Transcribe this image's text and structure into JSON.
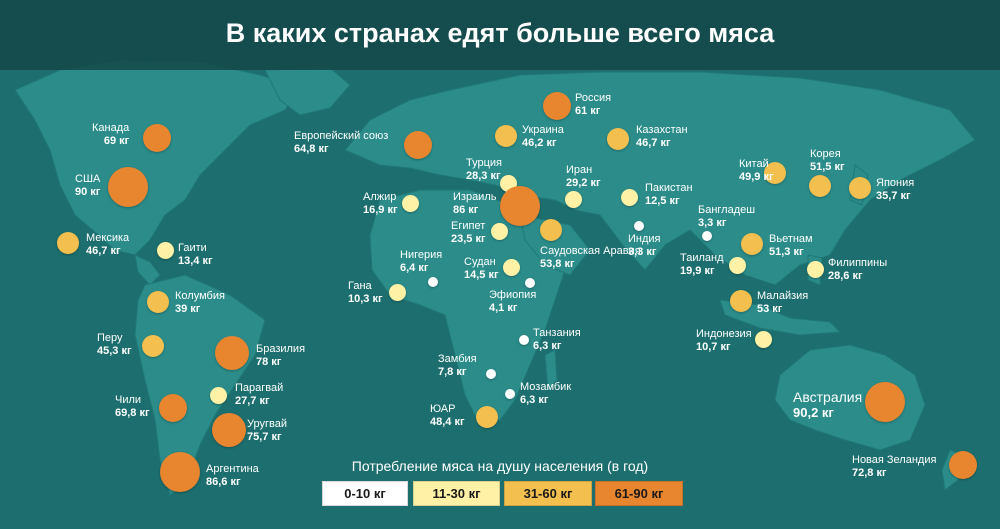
{
  "title": "В каких странах едят больше всего мяса",
  "colors": {
    "ocean": "#1d6e6e",
    "land": "#2b8c8a",
    "c1": "#ffffff",
    "c2": "#fff2a6",
    "c3": "#f3bf4e",
    "c4": "#e8852f"
  },
  "legend": {
    "title": "Потребление мяса на душу населения (в год)",
    "bins": [
      {
        "label": "0-10 кг",
        "color": "#ffffff"
      },
      {
        "label": "11-30 кг",
        "color": "#fff2a6"
      },
      {
        "label": "31-60 кг",
        "color": "#f3bf4e"
      },
      {
        "label": "61-90 кг",
        "color": "#e8852f"
      }
    ]
  },
  "chart_data": {
    "type": "map",
    "title": "В каких странах едят больше всего мяса",
    "legend_title": "Потребление мяса на душу населения (в год)",
    "countries": [
      {
        "name": "Канада",
        "value_text": "69 кг",
        "value": 69
      },
      {
        "name": "США",
        "value_text": "90 кг",
        "value": 90
      },
      {
        "name": "Мексика",
        "value_text": "46,7 кг",
        "value": 46.7
      },
      {
        "name": "Гаити",
        "value_text": "13,4 кг",
        "value": 13.4
      },
      {
        "name": "Колумбия",
        "value_text": "39 кг",
        "value": 39
      },
      {
        "name": "Перу",
        "value_text": "45,3 кг",
        "value": 45.3
      },
      {
        "name": "Бразилия",
        "value_text": "78 кг",
        "value": 78
      },
      {
        "name": "Парагвай",
        "value_text": "27,7 кг",
        "value": 27.7
      },
      {
        "name": "Чили",
        "value_text": "69,8 кг",
        "value": 69.8
      },
      {
        "name": "Уругвай",
        "value_text": "75,7 кг",
        "value": 75.7
      },
      {
        "name": "Аргентина",
        "value_text": "86,6 кг",
        "value": 86.6
      },
      {
        "name": "Европейский союз",
        "value_text": "64,8 кг",
        "value": 64.8
      },
      {
        "name": "Россия",
        "value_text": "61 кг",
        "value": 61
      },
      {
        "name": "Украина",
        "value_text": "46,2 кг",
        "value": 46.2
      },
      {
        "name": "Казахстан",
        "value_text": "46,7 кг",
        "value": 46.7
      },
      {
        "name": "Турция",
        "value_text": "28,3 кг",
        "value": 28.3
      },
      {
        "name": "Иран",
        "value_text": "29,2 кг",
        "value": 29.2
      },
      {
        "name": "Алжир",
        "value_text": "16,9 кг",
        "value": 16.9
      },
      {
        "name": "Израиль",
        "value_text": "86 кг",
        "value": 86
      },
      {
        "name": "Пакистан",
        "value_text": "12,5 кг",
        "value": 12.5
      },
      {
        "name": "Египет",
        "value_text": "23,5 кг",
        "value": 23.5
      },
      {
        "name": "Индия",
        "value_text": "3,3 кг",
        "value": 3.3
      },
      {
        "name": "Бангладеш",
        "value_text": "3,3 кг",
        "value": 3.3
      },
      {
        "name": "Нигерия",
        "value_text": "6,4 кг",
        "value": 6.4
      },
      {
        "name": "Судан",
        "value_text": "14,5 кг",
        "value": 14.5
      },
      {
        "name": "Саудовская Аравия",
        "value_text": "53,8 кг",
        "value": 53.8
      },
      {
        "name": "Гана",
        "value_text": "10,3 кг",
        "value": 10.3
      },
      {
        "name": "Эфиопия",
        "value_text": "4,1 кг",
        "value": 4.1
      },
      {
        "name": "Танзания",
        "value_text": "6,3 кг",
        "value": 6.3
      },
      {
        "name": "Замбия",
        "value_text": "7,8 кг",
        "value": 7.8
      },
      {
        "name": "Мозамбик",
        "value_text": "6,3 кг",
        "value": 6.3
      },
      {
        "name": "ЮАР",
        "value_text": "48,4 кг",
        "value": 48.4
      },
      {
        "name": "Китай",
        "value_text": "49,9 кг",
        "value": 49.9
      },
      {
        "name": "Корея",
        "value_text": "51,5 кг",
        "value": 51.5
      },
      {
        "name": "Япония",
        "value_text": "35,7 кг",
        "value": 35.7
      },
      {
        "name": "Вьетнам",
        "value_text": "51,3 кг",
        "value": 51.3
      },
      {
        "name": "Таиланд",
        "value_text": "19,9 кг",
        "value": 19.9
      },
      {
        "name": "Филиппины",
        "value_text": "28,6 кг",
        "value": 28.6
      },
      {
        "name": "Малайзия",
        "value_text": "53 кг",
        "value": 53
      },
      {
        "name": "Индонезия",
        "value_text": "10,7 кг",
        "value": 10.7
      },
      {
        "name": "Австралия",
        "value_text": "90,2 кг",
        "value": 90.2
      },
      {
        "name": "Новая Зеландия",
        "value_text": "72,8 кг",
        "value": 72.8
      }
    ]
  }
}
